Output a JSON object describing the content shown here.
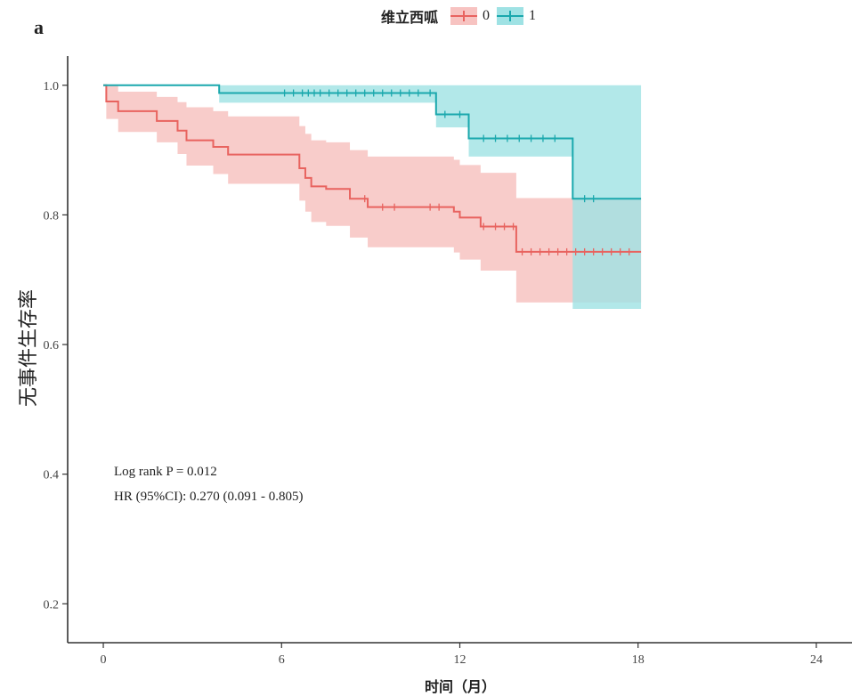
{
  "panel_label": "a",
  "legend": {
    "title": "维立西呱",
    "items": [
      "0",
      "1"
    ]
  },
  "annotations": {
    "p_value": "Log rank P = 0.012",
    "hr": "HR (95%CI): 0.270 (0.091 - 0.805)"
  },
  "colors": {
    "group0": "#e8635f",
    "group1": "#1aa8ad",
    "band0": "#f7c3c1",
    "band1": "#9fe2e4"
  },
  "chart_data": {
    "type": "line",
    "subtype": "kaplan-meier",
    "title": "",
    "xlabel": "时间（月）",
    "ylabel": "无事件生存率",
    "xlim": [
      -1.2,
      25.2
    ],
    "ylim": [
      0.14,
      1.045
    ],
    "x_ticks": [
      0,
      6,
      12,
      18,
      24
    ],
    "y_ticks": [
      0.2,
      0.4,
      0.6,
      0.8,
      1.0
    ],
    "y_tick_labels": [
      "0.2",
      "0.4",
      "0.6",
      "0.8",
      "1.0"
    ],
    "series": [
      {
        "name": "0",
        "step": [
          [
            0,
            1.0
          ],
          [
            0.1,
            0.975
          ],
          [
            0.5,
            0.96
          ],
          [
            1.8,
            0.945
          ],
          [
            2.5,
            0.93
          ],
          [
            2.8,
            0.915
          ],
          [
            3.7,
            0.905
          ],
          [
            4.2,
            0.893
          ],
          [
            6.6,
            0.872
          ],
          [
            6.8,
            0.857
          ],
          [
            7.0,
            0.844
          ],
          [
            7.5,
            0.84
          ],
          [
            8.3,
            0.825
          ],
          [
            8.9,
            0.812
          ],
          [
            11.8,
            0.805
          ],
          [
            12.0,
            0.796
          ],
          [
            12.7,
            0.782
          ],
          [
            13.9,
            0.743
          ],
          [
            18.1,
            0.743
          ]
        ],
        "ci_lower": [
          [
            0,
            1.0
          ],
          [
            0.1,
            0.948
          ],
          [
            0.5,
            0.928
          ],
          [
            1.8,
            0.912
          ],
          [
            2.5,
            0.894
          ],
          [
            2.8,
            0.876
          ],
          [
            3.7,
            0.863
          ],
          [
            4.2,
            0.848
          ],
          [
            6.6,
            0.822
          ],
          [
            6.8,
            0.805
          ],
          [
            7.0,
            0.789
          ],
          [
            7.5,
            0.783
          ],
          [
            8.3,
            0.765
          ],
          [
            8.9,
            0.75
          ],
          [
            11.8,
            0.742
          ],
          [
            12.0,
            0.731
          ],
          [
            12.7,
            0.714
          ],
          [
            13.9,
            0.665
          ],
          [
            18.1,
            0.665
          ]
        ],
        "ci_upper": [
          [
            0,
            1.0
          ],
          [
            0.5,
            0.99
          ],
          [
            1.8,
            0.982
          ],
          [
            2.5,
            0.974
          ],
          [
            2.8,
            0.966
          ],
          [
            3.7,
            0.96
          ],
          [
            4.2,
            0.952
          ],
          [
            6.6,
            0.937
          ],
          [
            6.8,
            0.925
          ],
          [
            7.0,
            0.915
          ],
          [
            7.5,
            0.912
          ],
          [
            8.3,
            0.9
          ],
          [
            8.9,
            0.89
          ],
          [
            11.8,
            0.885
          ],
          [
            12.0,
            0.877
          ],
          [
            12.7,
            0.865
          ],
          [
            13.9,
            0.826
          ],
          [
            18.1,
            0.826
          ]
        ],
        "censor_times": [
          8.8,
          9.4,
          9.8,
          11.0,
          11.3,
          12.8,
          13.2,
          13.5,
          13.8,
          14.1,
          14.4,
          14.7,
          15.0,
          15.3,
          15.6,
          15.9,
          16.2,
          16.5,
          16.8,
          17.1,
          17.4,
          17.7
        ]
      },
      {
        "name": "1",
        "step": [
          [
            0,
            1.0
          ],
          [
            3.9,
            0.988
          ],
          [
            11.2,
            0.955
          ],
          [
            12.3,
            0.918
          ],
          [
            15.8,
            0.825
          ],
          [
            18.1,
            0.825
          ]
        ],
        "ci_lower": [
          [
            0,
            1.0
          ],
          [
            3.9,
            0.973
          ],
          [
            11.2,
            0.935
          ],
          [
            12.3,
            0.89
          ],
          [
            15.8,
            0.655
          ],
          [
            18.1,
            0.655
          ]
        ],
        "ci_upper": [
          [
            0,
            1.0
          ],
          [
            3.9,
            1.0
          ],
          [
            11.2,
            1.0
          ],
          [
            12.3,
            1.0
          ],
          [
            15.8,
            1.0
          ],
          [
            18.1,
            1.0
          ]
        ],
        "censor_times": [
          6.1,
          6.4,
          6.7,
          6.9,
          7.1,
          7.3,
          7.6,
          7.9,
          8.2,
          8.5,
          8.8,
          9.1,
          9.4,
          9.7,
          10.0,
          10.3,
          10.6,
          11.0,
          11.5,
          12.0,
          12.8,
          13.2,
          13.6,
          14.0,
          14.4,
          14.8,
          15.2,
          16.2,
          16.5
        ]
      }
    ]
  }
}
